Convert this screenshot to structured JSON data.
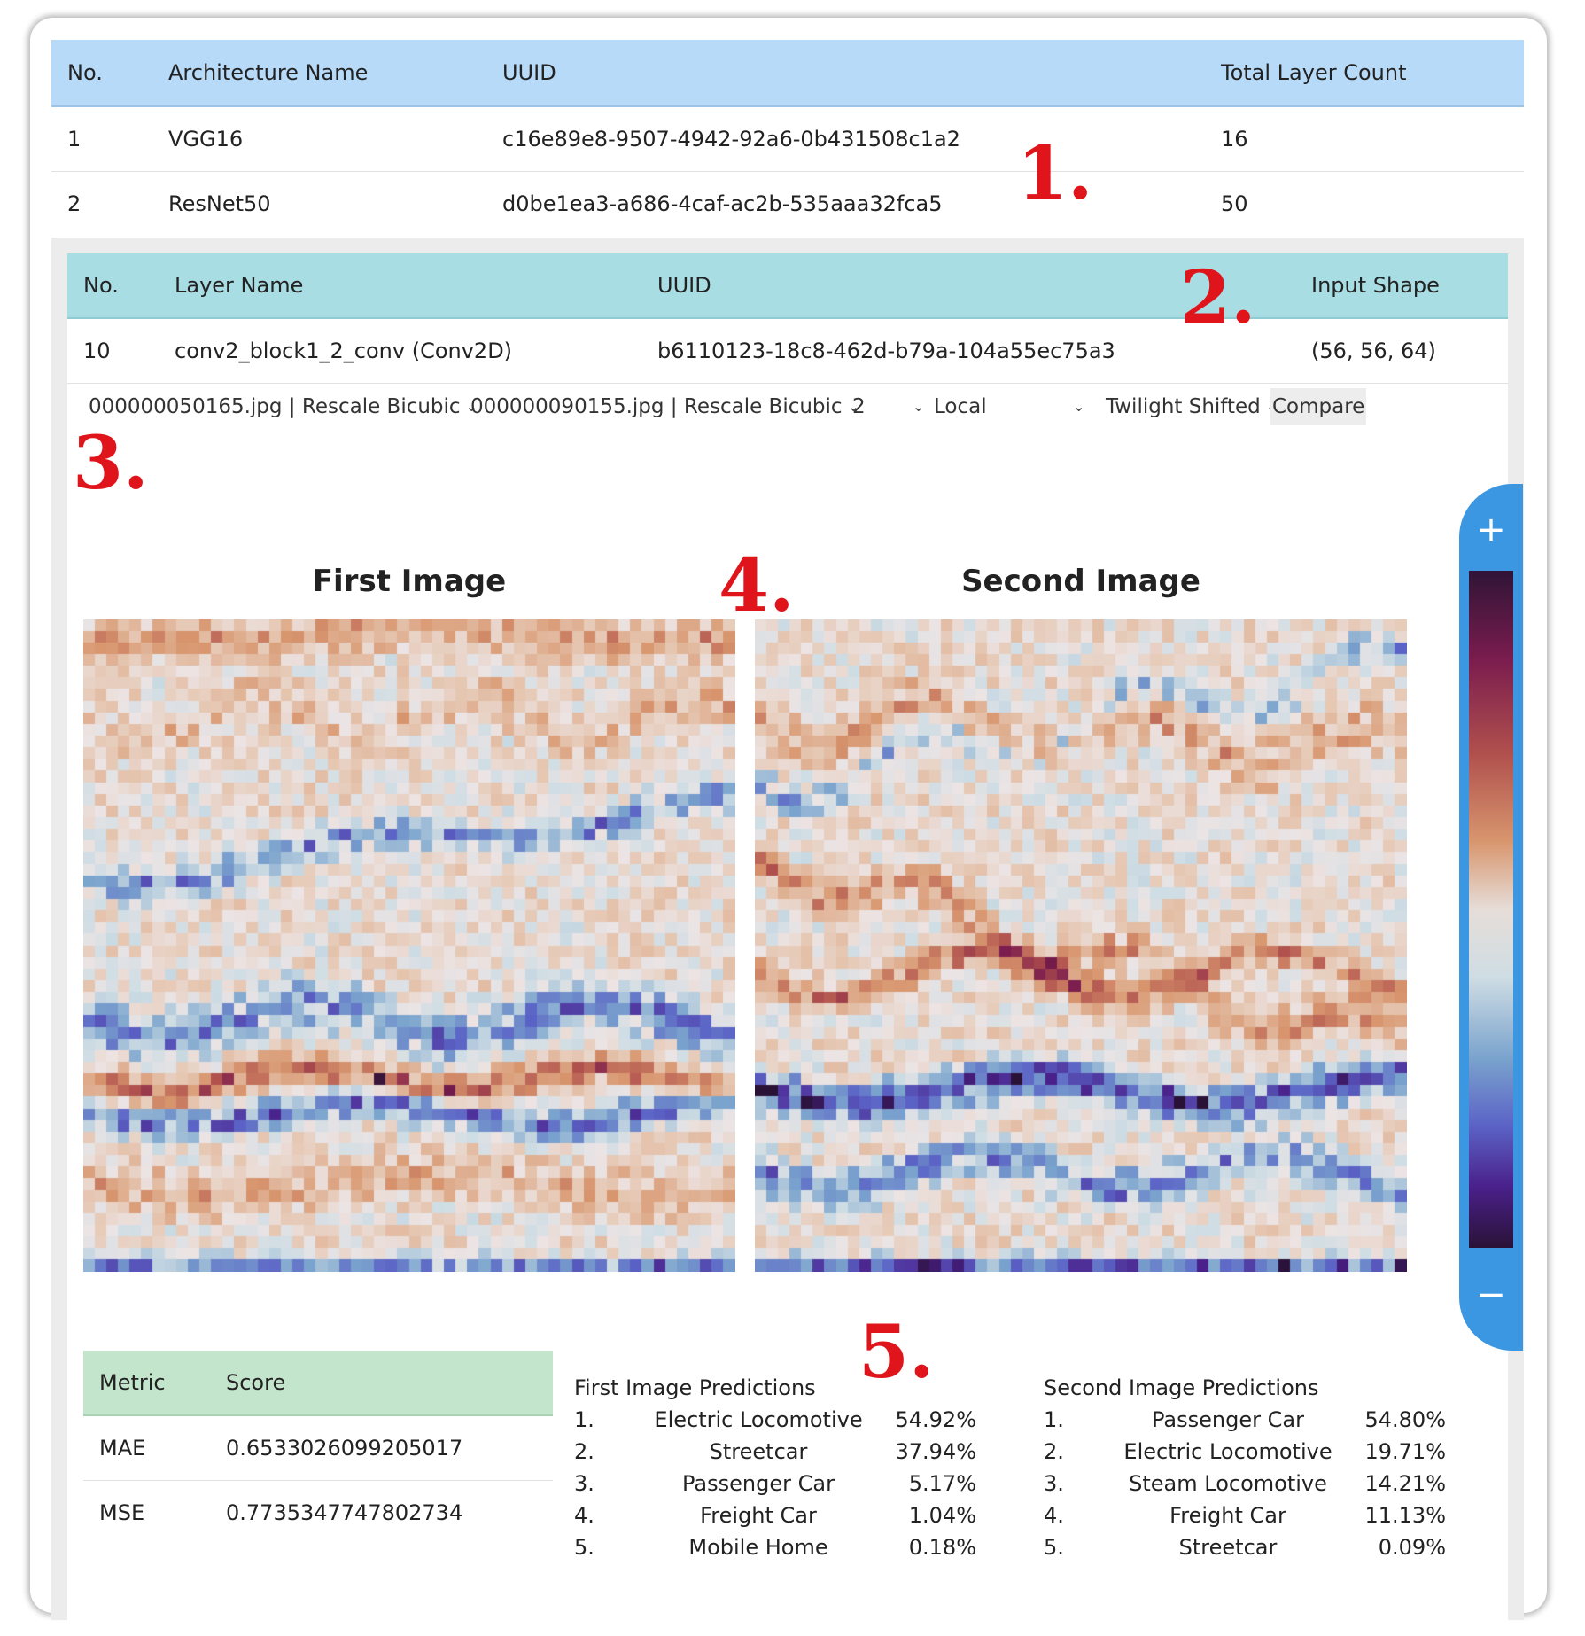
{
  "architectures": {
    "headers": [
      "No.",
      "Architecture Name",
      "UUID",
      "Total Layer Count"
    ],
    "rows": [
      [
        "1",
        "VGG16",
        "c16e89e8-9507-4942-92a6-0b431508c1a2",
        "16"
      ],
      [
        "2",
        "ResNet50",
        "d0be1ea3-a686-4caf-ac2b-535aaa32fca5",
        "50"
      ]
    ]
  },
  "layers": {
    "headers": [
      "No.",
      "Layer Name",
      "UUID",
      "Input Shape"
    ],
    "rows": [
      [
        "10",
        "conv2_block1_2_conv (Conv2D)",
        "b6110123-18c8-462d-b79a-104a55ec75a3",
        "(56, 56, 64)"
      ]
    ]
  },
  "controls": {
    "first_image": "000000050165.jpg | Rescale Bicubic",
    "second_image": "000000090155.jpg | Rescale Bicubic",
    "channel": "2",
    "normalization": "Local",
    "colormap": "Twilight Shifted",
    "compare_label": "Compare"
  },
  "figures": {
    "first_title": "First Image",
    "second_title": "Second Image"
  },
  "zoom": {
    "plus": "+",
    "minus": "−"
  },
  "metrics": {
    "headers": [
      "Metric",
      "Score"
    ],
    "rows": [
      [
        "MAE",
        "0.6533026099205017"
      ],
      [
        "MSE",
        "0.7735347747802734"
      ]
    ]
  },
  "predictions": {
    "first": {
      "title": "First Image Predictions",
      "items": [
        {
          "rank": "1.",
          "name": "Electric Locomotive",
          "pct": "54.92%"
        },
        {
          "rank": "2.",
          "name": "Streetcar",
          "pct": "37.94%"
        },
        {
          "rank": "3.",
          "name": "Passenger Car",
          "pct": "5.17%"
        },
        {
          "rank": "4.",
          "name": "Freight Car",
          "pct": "1.04%"
        },
        {
          "rank": "5.",
          "name": "Mobile Home",
          "pct": "0.18%"
        }
      ]
    },
    "second": {
      "title": "Second Image Predictions",
      "items": [
        {
          "rank": "1.",
          "name": "Passenger Car",
          "pct": "54.80%"
        },
        {
          "rank": "2.",
          "name": "Electric Locomotive",
          "pct": "19.71%"
        },
        {
          "rank": "3.",
          "name": "Steam Locomotive",
          "pct": "14.21%"
        },
        {
          "rank": "4.",
          "name": "Freight Car",
          "pct": "11.13%"
        },
        {
          "rank": "5.",
          "name": "Streetcar",
          "pct": "0.09%"
        }
      ]
    }
  },
  "annotations": [
    "1.",
    "2.",
    "3.",
    "4.",
    "5."
  ]
}
